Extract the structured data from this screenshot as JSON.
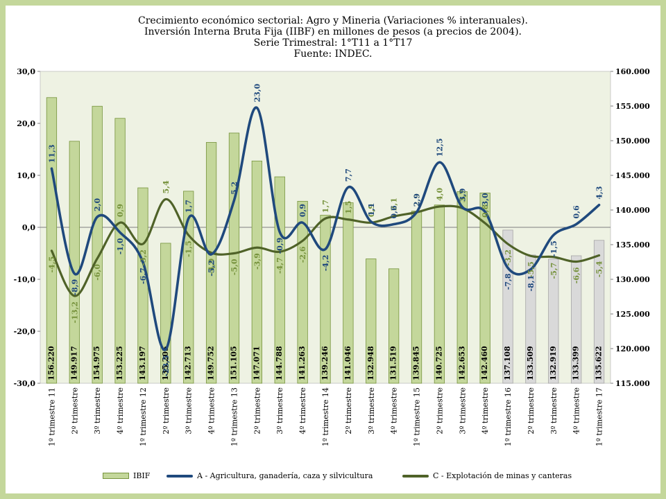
{
  "titles": [
    "Crecimiento económico sectorial: Agro y Mineria (Variaciones % interanuales).",
    "Inversión Interna Bruta Fija (IIBF) en millones de pesos (a precios de 2004).",
    "Serie Trimestral: 1°T11 a 1°T17",
    "Fuente: INDEC."
  ],
  "colors": {
    "background": "#c4d79b",
    "plot_bg": "#eef2e3",
    "bar_green_fill": "#c4d79b",
    "bar_green_edge": "#76933c",
    "bar_gray_fill": "#d9d9d9",
    "bar_gray_edge": "#a6a6a6",
    "series_a": "#1f497d",
    "series_c": "#4f6228",
    "label_a": "#1f497d",
    "label_c": "#76923c"
  },
  "chart_data": {
    "type": "bar",
    "categories": [
      "1º trimestre 11",
      "2º trimestre",
      "3º trimestre",
      "4º trimestre",
      "1º trimestre 12",
      "2º trimestre",
      "3º trimestre",
      "4º trimestre",
      "1º trimestre 13",
      "2º trimestre",
      "3º trimestre",
      "4º trimestre",
      "1º trimestre 14",
      "2º trimestre",
      "3º trimestre",
      "4º trimestre",
      "1º trimestre 15",
      "2º trimestre",
      "3º trimestre",
      "4º trimestre",
      "1º trimestre 16",
      "2º trimestre",
      "3º trimestre",
      "4º trimestre",
      "1º trimestre 17"
    ],
    "bars": {
      "name": "IBIF",
      "axis": "right",
      "values": [
        156220,
        149917,
        154975,
        153225,
        143197,
        135205,
        142713,
        149752,
        151105,
        147071,
        144788,
        141263,
        139246,
        141046,
        132948,
        131519,
        139845,
        140725,
        142653,
        142460,
        137108,
        133509,
        132919,
        133399,
        135622
      ],
      "labels": [
        "156.220",
        "149.917",
        "154.975",
        "153.225",
        "143.197",
        "135.205",
        "142.713",
        "149.752",
        "151.105",
        "147.071",
        "144.788",
        "141.263",
        "139.246",
        "141.046",
        "132.948",
        "131.519",
        "139.845",
        "140.725",
        "142.653",
        "142.460",
        "137.108",
        "133.509",
        "132.919",
        "133.399",
        "135.622"
      ],
      "gray_from_index": 20
    },
    "series": [
      {
        "name": "A - Agricultura, ganadería, caza y silvicultura",
        "axis": "left",
        "values": [
          11.3,
          -8.9,
          2.0,
          -1.0,
          -6.7,
          -23.5,
          1.7,
          -5.2,
          5.2,
          23.0,
          -0.9,
          0.9,
          -4.2,
          7.7,
          1.1,
          0.6,
          2.9,
          12.5,
          3.9,
          3.0,
          -7.8,
          -8.1,
          -1.5,
          0.6,
          4.3
        ],
        "labels": [
          "11,3",
          "-8,9",
          "2,0",
          "-1,0",
          "-6,7",
          "-23,5",
          "1,7",
          "-5,2",
          "5,2",
          "23,0",
          "-0,9",
          "0,9",
          "-4,2",
          "7,7",
          "1,1",
          "0,6",
          "2,9",
          "12,5",
          "3,9",
          "3,0",
          "-7,8",
          "-8,1",
          "-1,5",
          "0,6",
          "4,3"
        ]
      },
      {
        "name": "C - Explotación de minas y canteras",
        "axis": "left",
        "values": [
          -4.5,
          -13.2,
          -6.0,
          0.9,
          -3.2,
          5.4,
          -1.5,
          -4.9,
          -5.0,
          -3.9,
          -4.7,
          -2.6,
          1.7,
          1.5,
          0.9,
          2.1,
          2.9,
          4.0,
          3.7,
          0.8,
          -3.2,
          -5.5,
          -5.7,
          -6.6,
          -5.4
        ],
        "labels": [
          "-4,5",
          "-13,2",
          "-6,0",
          "0,9",
          "-3,2",
          "5,4",
          "-1,5",
          "-4,9",
          "-5,0",
          "-3,9",
          "-4,7",
          "-2,6",
          "1,7",
          "1,5",
          "0,9",
          "2,1",
          "2,9",
          "4,0",
          "3,7",
          "0,8",
          "-3,2",
          "-5,5",
          "-5,7",
          "-6,6",
          "-5,4"
        ]
      }
    ],
    "y_left": {
      "min": -30,
      "max": 30,
      "step": 10,
      "tick_labels": [
        "-30,0",
        "-20,0",
        "-10,0",
        "0,0",
        "10,0",
        "20,0",
        "30,0"
      ]
    },
    "y_right": {
      "min": 115000,
      "max": 160000,
      "step": 5000,
      "tick_labels": [
        "115.000",
        "120.000",
        "125.000",
        "130.000",
        "135.000",
        "140.000",
        "145.000",
        "150.000",
        "155.000",
        "160.000"
      ]
    },
    "legend_position": "bottom",
    "grid": false
  }
}
